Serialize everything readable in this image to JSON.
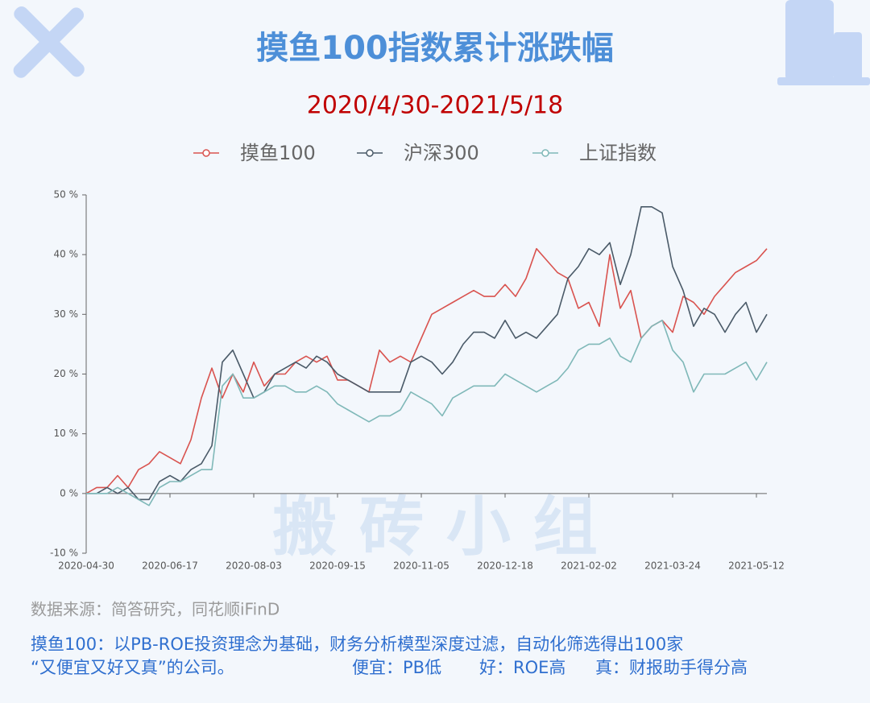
{
  "chart_data": {
    "type": "line",
    "title": "摸鱼100指数累计涨跌幅",
    "subtitle": "2020/4/30-2021/5/18",
    "watermark": "搬 砖 小 组",
    "categories": [
      "2020-04-30",
      null,
      null,
      null,
      null,
      null,
      null,
      null,
      "2020-06-17",
      null,
      null,
      null,
      null,
      null,
      null,
      null,
      "2020-08-03",
      null,
      null,
      null,
      null,
      null,
      null,
      null,
      "2020-09-15",
      null,
      null,
      null,
      null,
      null,
      null,
      null,
      "2020-11-05",
      null,
      null,
      null,
      null,
      null,
      null,
      null,
      "2020-12-18",
      null,
      null,
      null,
      null,
      null,
      null,
      null,
      "2021-02-02",
      null,
      null,
      null,
      null,
      null,
      null,
      null,
      "2021-03-24",
      null,
      null,
      null,
      null,
      null,
      null,
      null,
      "2021-05-12",
      null
    ],
    "series": [
      {
        "name": "摸鱼100",
        "color": "#d9534f",
        "values": [
          0,
          1,
          1,
          3,
          1,
          4,
          5,
          7,
          6,
          5,
          9,
          16,
          21,
          16,
          20,
          17,
          22,
          18,
          20,
          20,
          22,
          23,
          22,
          23,
          19,
          19,
          18,
          17,
          24,
          22,
          23,
          22,
          26,
          30,
          31,
          32,
          33,
          34,
          33,
          33,
          35,
          33,
          36,
          41,
          39,
          37,
          36,
          31,
          32,
          28,
          40,
          31,
          34,
          26,
          28,
          29,
          27,
          33,
          32,
          30,
          33,
          35,
          37,
          38,
          39,
          41
        ]
      },
      {
        "name": "沪深300",
        "color": "#4a5a68",
        "values": [
          0,
          0,
          1,
          0,
          1,
          -1,
          -1,
          2,
          3,
          2,
          4,
          5,
          8,
          22,
          24,
          20,
          16,
          17,
          20,
          21,
          22,
          21,
          23,
          22,
          20,
          19,
          18,
          17,
          17,
          17,
          17,
          22,
          23,
          22,
          20,
          22,
          25,
          27,
          27,
          26,
          29,
          26,
          27,
          26,
          28,
          30,
          36,
          38,
          41,
          40,
          42,
          35,
          40,
          48,
          48,
          47,
          38,
          34,
          28,
          31,
          30,
          27,
          30,
          32,
          27,
          30
        ]
      },
      {
        "name": "上证指数",
        "color": "#7fb8b8",
        "values": [
          0,
          0,
          0,
          1,
          0,
          -1,
          -2,
          1,
          2,
          2,
          3,
          4,
          4,
          18,
          20,
          16,
          16,
          17,
          18,
          18,
          17,
          17,
          18,
          17,
          15,
          14,
          13,
          12,
          13,
          13,
          14,
          17,
          16,
          15,
          13,
          16,
          17,
          18,
          18,
          18,
          20,
          19,
          18,
          17,
          18,
          19,
          21,
          24,
          25,
          25,
          26,
          23,
          22,
          26,
          28,
          29,
          24,
          22,
          17,
          20,
          20,
          20,
          21,
          22,
          19,
          22
        ]
      }
    ],
    "ylim": [
      -10,
      50
    ],
    "yticks": [
      {
        "value": -10,
        "label": "-10 %"
      },
      {
        "value": 0,
        "label": "0 %"
      },
      {
        "value": 10,
        "label": "10 %"
      },
      {
        "value": 20,
        "label": "20 %"
      },
      {
        "value": 30,
        "label": "30 %"
      },
      {
        "value": 40,
        "label": "40 %"
      },
      {
        "value": 50,
        "label": "50 %"
      }
    ],
    "grid": false,
    "legend": "top",
    "source": "数据来源：简答研究，同花顺iFinD",
    "notes": [
      "摸鱼100：以PB-ROE投资理念为基础，财务分析模型深度过滤，自动化筛选得出100家",
      "“又便宜又好又真”的公司。",
      "便宜：PB低",
      "好：ROE高",
      "真：财报助手得分高"
    ]
  }
}
